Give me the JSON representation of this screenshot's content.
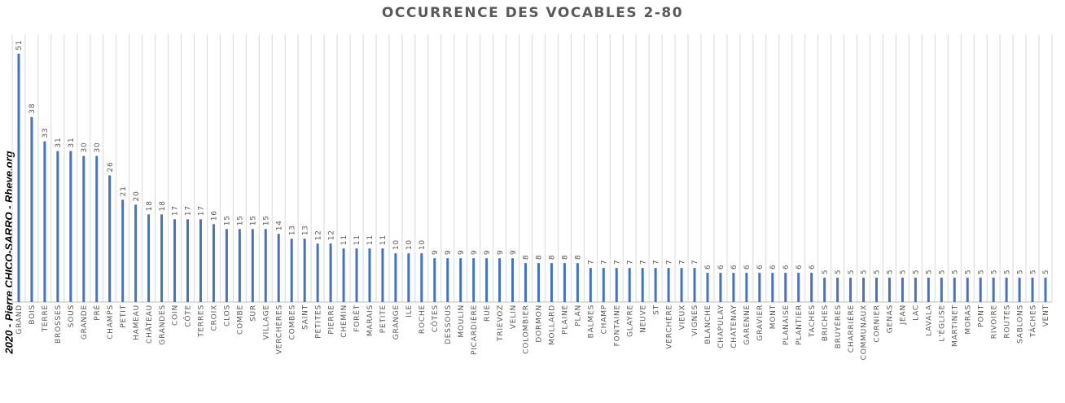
{
  "credit": "2020 - Pierre CHICO-SARRO - Rheve.org",
  "colors": {
    "bar": "#4472c4",
    "grid": "#d9d9d9",
    "text": "#595959",
    "axis": "#bfbfbf"
  },
  "chart_data": {
    "type": "bar",
    "title": "OCCURRENCE DES VOCABLES 2-80",
    "xlabel": "",
    "ylabel": "",
    "ylim": [
      0,
      55
    ],
    "grid": true,
    "legend": "none",
    "categories": [
      "GRAND",
      "BOIS",
      "TERRE",
      "BROSSES",
      "SOUS",
      "GRANDE",
      "PRÉ",
      "CHAMPS",
      "PETIT",
      "HAMEAU",
      "CHÂTEAU",
      "GRANDES",
      "COIN",
      "CÔTE",
      "TERRES",
      "CROIX",
      "CLOS",
      "COMBE",
      "SUR",
      "VILLAGE",
      "VERCHÈRES",
      "COMBES",
      "SAINT",
      "PETITES",
      "PIERRE",
      "CHEMIN",
      "FORÊT",
      "MARAIS",
      "PETITE",
      "GRANGE",
      "ILE",
      "ROCHE",
      "CÔTES",
      "DESSOUS",
      "MOULIN",
      "PICARDIÈRE",
      "RUE",
      "TRIEVOZ",
      "VELIN",
      "COLOMBIER",
      "DORMON",
      "MOLLARD",
      "PLAINE",
      "PLAN",
      "BALMES",
      "CHAMP",
      "FONTAINE",
      "GLAYRE",
      "NEUVE",
      "ST",
      "VERCHÈRE",
      "VIEUX",
      "VIGNES",
      "BLANCHE",
      "CHAPULAY",
      "CHATENAY",
      "GARENNE",
      "GRAVIER",
      "MONT",
      "PLANAISE",
      "PLANTIER",
      "TACHES",
      "BRICHES",
      "BRUYÈRES",
      "CHARRIÈRE",
      "COMMUNAUX",
      "CORNIER",
      "GENAS",
      "JEAN",
      "LAC",
      "LAVALA",
      "L'ÉGLISE",
      "MARTINET",
      "MORAS",
      "PONT",
      "RIVOIRE",
      "ROUTES",
      "SABLONS",
      "TÂCHES",
      "VENT"
    ],
    "values": [
      51,
      38,
      33,
      31,
      31,
      30,
      30,
      26,
      21,
      20,
      18,
      18,
      17,
      17,
      17,
      16,
      15,
      15,
      15,
      15,
      14,
      13,
      13,
      12,
      12,
      11,
      11,
      11,
      11,
      10,
      10,
      10,
      9,
      9,
      9,
      9,
      9,
      9,
      9,
      8,
      8,
      8,
      8,
      8,
      7,
      7,
      7,
      7,
      7,
      7,
      7,
      7,
      7,
      6,
      6,
      6,
      6,
      6,
      6,
      6,
      6,
      6,
      5,
      5,
      5,
      5,
      5,
      5,
      5,
      5,
      5,
      5,
      5,
      5,
      5,
      5,
      5,
      5,
      5,
      5
    ]
  }
}
